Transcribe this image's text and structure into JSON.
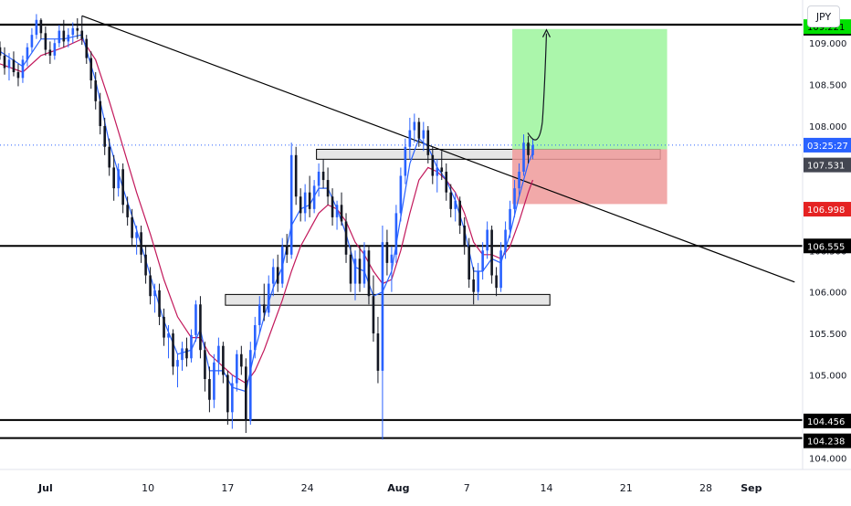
{
  "currency": "JPY",
  "chart_data": {
    "type": "candlestick",
    "x_ticks": [
      {
        "label": "Jul",
        "day": 0
      },
      {
        "label": "10",
        "day": 9
      },
      {
        "label": "17",
        "day": 16
      },
      {
        "label": "24",
        "day": 23
      },
      {
        "label": "Aug",
        "day": 31
      },
      {
        "label": "7",
        "day": 37
      },
      {
        "label": "14",
        "day": 44
      },
      {
        "label": "21",
        "day": 51
      },
      {
        "label": "28",
        "day": 58
      },
      {
        "label": "Sep",
        "day": 62
      }
    ],
    "y_ticks": [
      109.0,
      108.5,
      108.0,
      107.5,
      107.0,
      106.5,
      106.0,
      105.5,
      105.0,
      104.5,
      104.0
    ],
    "y_tick_labels": [
      "109.000",
      "108.500",
      "108.000",
      "107.500",
      "107.000",
      "106.500",
      "106.000",
      "105.500",
      "105.000",
      "104.500",
      "104.000"
    ],
    "ylim": [
      103.86,
      109.52
    ],
    "xlim": [
      -4,
      66.5
    ],
    "price_labels": [
      {
        "value": 109.224,
        "text": "109.224",
        "bg": "#000000",
        "fg": "#ffffff"
      },
      {
        "value": 109.221,
        "text": "109.221",
        "bg": "#00e000",
        "fg": "#000000"
      },
      {
        "value": 107.531,
        "text": "107.531",
        "bg": "#434651",
        "fg": "#ffffff"
      },
      {
        "value": 106.998,
        "text": "106.998",
        "bg": "#e52222",
        "fg": "#ffffff"
      },
      {
        "value": 106.555,
        "text": "106.555",
        "bg": "#000000",
        "fg": "#ffffff"
      },
      {
        "value": 104.456,
        "text": "104.456",
        "bg": "#000000",
        "fg": "#ffffff"
      },
      {
        "value": 104.238,
        "text": "104.238",
        "bg": "#000000",
        "fg": "#ffffff"
      }
    ],
    "countdown": {
      "text": "03:25:27",
      "value": 107.77,
      "bg": "#2962ff",
      "fg": "#ffffff"
    },
    "horizontal_levels": [
      109.224,
      109.221,
      106.555,
      104.456,
      104.238
    ],
    "current_price": 107.77,
    "trendline": {
      "start": {
        "day": 3.2,
        "price": 109.33
      },
      "end": {
        "day": 65.8,
        "price": 106.12
      }
    },
    "zones": [
      {
        "x1": 23.8,
        "x2": 54.0,
        "y1": 107.72,
        "y2": 107.6
      },
      {
        "x1": 15.8,
        "x2": 44.3,
        "y1": 105.97,
        "y2": 105.84
      }
    ],
    "position": {
      "x1": 41.0,
      "x2": 54.6,
      "entry": 107.72,
      "target": 109.17,
      "stop": 107.06
    },
    "projection_arrow": {
      "start": {
        "day": 43.0,
        "price": 107.72
      },
      "end": {
        "day": 44.0,
        "price": 109.16
      }
    },
    "ohlc": [
      [
        -4.0,
        108.95,
        109.02,
        108.8,
        108.85
      ],
      [
        -3.6,
        108.85,
        108.95,
        108.62,
        108.7
      ],
      [
        -3.2,
        108.7,
        108.88,
        108.55,
        108.8
      ],
      [
        -2.8,
        108.8,
        108.9,
        108.6,
        108.65
      ],
      [
        -2.4,
        108.65,
        108.75,
        108.48,
        108.58
      ],
      [
        -2.0,
        108.58,
        108.85,
        108.52,
        108.8
      ],
      [
        -1.6,
        108.8,
        109.0,
        108.72,
        108.95
      ],
      [
        -1.2,
        108.95,
        109.18,
        108.88,
        109.1
      ],
      [
        -0.8,
        109.1,
        109.35,
        109.05,
        109.28
      ],
      [
        -0.4,
        109.28,
        109.3,
        109.05,
        109.12
      ],
      [
        0.0,
        109.12,
        109.2,
        108.85,
        108.92
      ],
      [
        0.4,
        108.92,
        109.02,
        108.75,
        108.85
      ],
      [
        0.8,
        108.85,
        109.05,
        108.8,
        109.0
      ],
      [
        1.2,
        109.0,
        109.22,
        108.95,
        109.15
      ],
      [
        1.6,
        109.15,
        109.28,
        108.95,
        109.02
      ],
      [
        2.0,
        109.02,
        109.18,
        108.95,
        109.1
      ],
      [
        2.4,
        109.1,
        109.25,
        109.0,
        109.18
      ],
      [
        2.8,
        109.18,
        109.3,
        109.05,
        109.15
      ],
      [
        3.2,
        109.15,
        109.33,
        108.98,
        109.05
      ],
      [
        3.6,
        109.05,
        109.1,
        108.75,
        108.82
      ],
      [
        4.0,
        108.82,
        108.9,
        108.45,
        108.55
      ],
      [
        4.4,
        108.55,
        108.65,
        108.2,
        108.3
      ],
      [
        4.8,
        108.3,
        108.4,
        107.9,
        108.0
      ],
      [
        5.2,
        108.0,
        108.1,
        107.65,
        107.75
      ],
      [
        5.6,
        107.75,
        107.85,
        107.4,
        107.5
      ],
      [
        6.0,
        107.5,
        107.65,
        107.1,
        107.25
      ],
      [
        6.4,
        107.25,
        107.55,
        107.15,
        107.48
      ],
      [
        6.8,
        107.48,
        107.55,
        106.95,
        107.05
      ],
      [
        7.2,
        107.05,
        107.15,
        106.8,
        106.9
      ],
      [
        7.6,
        106.9,
        107.0,
        106.55,
        106.65
      ],
      [
        8.0,
        106.65,
        106.8,
        106.45,
        106.72
      ],
      [
        8.4,
        106.72,
        106.8,
        106.35,
        106.45
      ],
      [
        8.8,
        106.45,
        106.55,
        106.1,
        106.2
      ],
      [
        9.2,
        106.2,
        106.3,
        105.85,
        105.95
      ],
      [
        9.6,
        105.95,
        106.1,
        105.75,
        106.02
      ],
      [
        10.0,
        106.02,
        106.1,
        105.6,
        105.7
      ],
      [
        10.4,
        105.7,
        105.8,
        105.35,
        105.45
      ],
      [
        10.8,
        105.45,
        105.6,
        105.2,
        105.5
      ],
      [
        11.2,
        105.5,
        105.55,
        105.0,
        105.1
      ],
      [
        11.6,
        105.1,
        105.25,
        104.85,
        105.18
      ],
      [
        12.0,
        105.18,
        105.4,
        105.05,
        105.32
      ],
      [
        12.4,
        105.32,
        105.45,
        105.1,
        105.2
      ],
      [
        12.8,
        105.2,
        105.55,
        105.15,
        105.48
      ],
      [
        13.2,
        105.48,
        105.9,
        105.4,
        105.85
      ],
      [
        13.6,
        105.85,
        105.95,
        105.2,
        105.3
      ],
      [
        14.0,
        105.3,
        105.4,
        104.8,
        104.95
      ],
      [
        14.4,
        104.95,
        105.1,
        104.55,
        104.7
      ],
      [
        14.8,
        104.7,
        105.25,
        104.6,
        105.15
      ],
      [
        15.2,
        105.15,
        105.45,
        105.0,
        105.35
      ],
      [
        15.6,
        105.35,
        105.4,
        104.9,
        105.0
      ],
      [
        16.0,
        105.0,
        105.05,
        104.4,
        104.55
      ],
      [
        16.4,
        104.55,
        105.0,
        104.35,
        104.9
      ],
      [
        16.8,
        104.9,
        105.3,
        104.8,
        105.25
      ],
      [
        17.2,
        105.25,
        105.35,
        105.0,
        105.1
      ],
      [
        17.6,
        105.1,
        105.2,
        104.3,
        104.45
      ],
      [
        18.0,
        104.45,
        105.4,
        104.4,
        105.3
      ],
      [
        18.4,
        105.3,
        105.7,
        105.2,
        105.6
      ],
      [
        18.8,
        105.6,
        105.95,
        105.5,
        105.85
      ],
      [
        19.2,
        105.85,
        106.1,
        105.65,
        105.75
      ],
      [
        19.6,
        105.75,
        106.2,
        105.7,
        106.1
      ],
      [
        20.0,
        106.1,
        106.4,
        105.95,
        106.3
      ],
      [
        20.4,
        106.3,
        106.45,
        106.0,
        106.1
      ],
      [
        20.8,
        106.1,
        106.65,
        106.05,
        106.55
      ],
      [
        21.2,
        106.55,
        106.7,
        106.35,
        106.45
      ],
      [
        21.6,
        106.45,
        107.8,
        106.4,
        107.65
      ],
      [
        22.0,
        107.65,
        107.75,
        107.05,
        107.15
      ],
      [
        22.4,
        107.15,
        107.25,
        106.85,
        106.95
      ],
      [
        22.8,
        106.95,
        107.3,
        106.85,
        107.2
      ],
      [
        23.2,
        107.2,
        107.4,
        106.9,
        107.0
      ],
      [
        23.6,
        107.0,
        107.35,
        106.95,
        107.28
      ],
      [
        24.0,
        107.28,
        107.55,
        107.15,
        107.45
      ],
      [
        24.4,
        107.45,
        107.6,
        107.25,
        107.35
      ],
      [
        24.8,
        107.35,
        107.5,
        107.05,
        107.15
      ],
      [
        25.2,
        107.15,
        107.25,
        106.8,
        106.9
      ],
      [
        25.6,
        106.9,
        107.1,
        106.75,
        107.05
      ],
      [
        26.0,
        107.05,
        107.2,
        106.8,
        106.85
      ],
      [
        26.4,
        106.85,
        106.95,
        106.35,
        106.45
      ],
      [
        26.8,
        106.45,
        106.55,
        106.0,
        106.1
      ],
      [
        27.2,
        106.1,
        106.5,
        105.9,
        106.4
      ],
      [
        27.6,
        106.4,
        106.55,
        106.0,
        106.1
      ],
      [
        28.0,
        106.1,
        106.6,
        106.05,
        106.5
      ],
      [
        28.4,
        106.5,
        106.55,
        105.85,
        105.95
      ],
      [
        28.8,
        105.95,
        106.2,
        105.4,
        105.5
      ],
      [
        29.2,
        105.5,
        105.7,
        104.9,
        105.05
      ],
      [
        29.6,
        105.05,
        106.8,
        104.22,
        106.6
      ],
      [
        30.0,
        106.6,
        106.75,
        106.2,
        106.35
      ],
      [
        30.4,
        106.35,
        106.55,
        106.0,
        106.45
      ],
      [
        30.8,
        106.45,
        107.05,
        106.35,
        106.95
      ],
      [
        31.2,
        106.95,
        107.5,
        106.85,
        107.4
      ],
      [
        31.6,
        107.4,
        107.85,
        107.3,
        107.75
      ],
      [
        32.0,
        107.75,
        108.1,
        107.6,
        107.95
      ],
      [
        32.4,
        107.95,
        108.15,
        107.8,
        108.05
      ],
      [
        32.8,
        108.05,
        108.1,
        107.75,
        107.85
      ],
      [
        33.2,
        107.85,
        108.05,
        107.7,
        107.95
      ],
      [
        33.6,
        107.95,
        108.0,
        107.55,
        107.65
      ],
      [
        34.0,
        107.65,
        107.75,
        107.3,
        107.4
      ],
      [
        34.4,
        107.4,
        107.6,
        107.2,
        107.5
      ],
      [
        34.8,
        107.5,
        107.7,
        107.35,
        107.45
      ],
      [
        35.2,
        107.45,
        107.55,
        107.1,
        107.2
      ],
      [
        35.6,
        107.2,
        107.3,
        106.9,
        107.0
      ],
      [
        36.0,
        107.0,
        107.2,
        106.85,
        107.1
      ],
      [
        36.4,
        107.1,
        107.15,
        106.7,
        106.8
      ],
      [
        36.8,
        106.8,
        106.9,
        106.45,
        106.55
      ],
      [
        37.2,
        106.55,
        106.65,
        106.05,
        106.15
      ],
      [
        37.6,
        106.15,
        106.3,
        105.85,
        106.0
      ],
      [
        38.0,
        106.0,
        106.35,
        105.9,
        106.25
      ],
      [
        38.4,
        106.25,
        106.6,
        106.15,
        106.5
      ],
      [
        38.8,
        106.5,
        106.85,
        106.4,
        106.75
      ],
      [
        39.2,
        106.75,
        106.8,
        106.1,
        106.2
      ],
      [
        39.6,
        106.2,
        106.3,
        105.95,
        106.05
      ],
      [
        40.0,
        106.05,
        106.6,
        106.0,
        106.5
      ],
      [
        40.4,
        106.5,
        106.85,
        106.4,
        106.75
      ],
      [
        40.8,
        106.75,
        107.1,
        106.65,
        107.0
      ],
      [
        41.2,
        107.0,
        107.35,
        106.9,
        107.25
      ],
      [
        41.6,
        107.25,
        107.55,
        107.15,
        107.45
      ],
      [
        42.0,
        107.45,
        107.9,
        107.4,
        107.8
      ],
      [
        42.4,
        107.8,
        107.88,
        107.55,
        107.65
      ],
      [
        42.8,
        107.65,
        107.85,
        107.6,
        107.77
      ]
    ],
    "ema_fast": [
      [
        -4.0,
        108.9
      ],
      [
        -2.0,
        108.72
      ],
      [
        -0.4,
        109.05
      ],
      [
        1.6,
        109.05
      ],
      [
        3.2,
        109.1
      ],
      [
        4.4,
        108.55
      ],
      [
        5.6,
        107.8
      ],
      [
        6.8,
        107.25
      ],
      [
        8.0,
        106.75
      ],
      [
        9.2,
        106.2
      ],
      [
        10.4,
        105.65
      ],
      [
        11.6,
        105.25
      ],
      [
        12.8,
        105.3
      ],
      [
        13.6,
        105.55
      ],
      [
        14.4,
        105.05
      ],
      [
        15.6,
        105.05
      ],
      [
        16.4,
        104.85
      ],
      [
        17.6,
        104.8
      ],
      [
        18.4,
        105.3
      ],
      [
        19.2,
        105.7
      ],
      [
        20.0,
        106.05
      ],
      [
        20.8,
        106.3
      ],
      [
        21.6,
        106.8
      ],
      [
        22.4,
        107.0
      ],
      [
        23.2,
        107.05
      ],
      [
        24.0,
        107.25
      ],
      [
        24.8,
        107.25
      ],
      [
        25.6,
        107.0
      ],
      [
        26.4,
        106.7
      ],
      [
        27.2,
        106.3
      ],
      [
        28.0,
        106.25
      ],
      [
        28.8,
        105.95
      ],
      [
        29.6,
        106.0
      ],
      [
        30.4,
        106.25
      ],
      [
        31.2,
        106.9
      ],
      [
        32.0,
        107.55
      ],
      [
        32.8,
        107.85
      ],
      [
        33.6,
        107.75
      ],
      [
        34.4,
        107.5
      ],
      [
        35.2,
        107.35
      ],
      [
        36.0,
        107.1
      ],
      [
        36.8,
        106.75
      ],
      [
        37.6,
        106.25
      ],
      [
        38.4,
        106.25
      ],
      [
        39.2,
        106.4
      ],
      [
        40.0,
        106.35
      ],
      [
        40.8,
        106.7
      ],
      [
        41.6,
        107.15
      ],
      [
        42.4,
        107.55
      ],
      [
        42.8,
        107.68
      ]
    ],
    "ema_slow": [
      [
        -4.0,
        108.75
      ],
      [
        -2.0,
        108.65
      ],
      [
        -0.4,
        108.85
      ],
      [
        1.6,
        108.95
      ],
      [
        3.2,
        109.05
      ],
      [
        4.4,
        108.8
      ],
      [
        5.6,
        108.3
      ],
      [
        6.8,
        107.75
      ],
      [
        8.0,
        107.2
      ],
      [
        9.2,
        106.7
      ],
      [
        10.4,
        106.15
      ],
      [
        11.6,
        105.7
      ],
      [
        12.8,
        105.45
      ],
      [
        13.6,
        105.45
      ],
      [
        14.4,
        105.25
      ],
      [
        15.6,
        105.1
      ],
      [
        16.4,
        105.0
      ],
      [
        17.6,
        104.9
      ],
      [
        18.4,
        105.05
      ],
      [
        19.2,
        105.3
      ],
      [
        20.0,
        105.6
      ],
      [
        20.8,
        105.9
      ],
      [
        21.6,
        106.25
      ],
      [
        22.4,
        106.55
      ],
      [
        23.2,
        106.75
      ],
      [
        24.0,
        106.95
      ],
      [
        24.8,
        107.05
      ],
      [
        25.6,
        107.0
      ],
      [
        26.4,
        106.85
      ],
      [
        27.2,
        106.6
      ],
      [
        28.0,
        106.45
      ],
      [
        28.8,
        106.25
      ],
      [
        29.6,
        106.1
      ],
      [
        30.4,
        106.15
      ],
      [
        31.2,
        106.5
      ],
      [
        32.0,
        106.95
      ],
      [
        32.8,
        107.35
      ],
      [
        33.6,
        107.5
      ],
      [
        34.4,
        107.45
      ],
      [
        35.2,
        107.35
      ],
      [
        36.0,
        107.2
      ],
      [
        36.8,
        106.95
      ],
      [
        37.6,
        106.6
      ],
      [
        38.4,
        106.45
      ],
      [
        39.2,
        106.45
      ],
      [
        40.0,
        106.4
      ],
      [
        40.8,
        106.55
      ],
      [
        41.6,
        106.85
      ],
      [
        42.4,
        107.2
      ],
      [
        42.8,
        107.35
      ]
    ],
    "colors": {
      "up": "#2962ff",
      "down": "#131722",
      "ema_fast": "#2962ff",
      "ema_slow": "#c2185b",
      "level": "#000000",
      "trendline": "#000000",
      "target_zone": "#9cf59c",
      "stop_zone": "#ef9a9a",
      "zone_box": "#e6e6e6",
      "current_price_line": "#2962ff",
      "axis_text": "#131722"
    }
  }
}
